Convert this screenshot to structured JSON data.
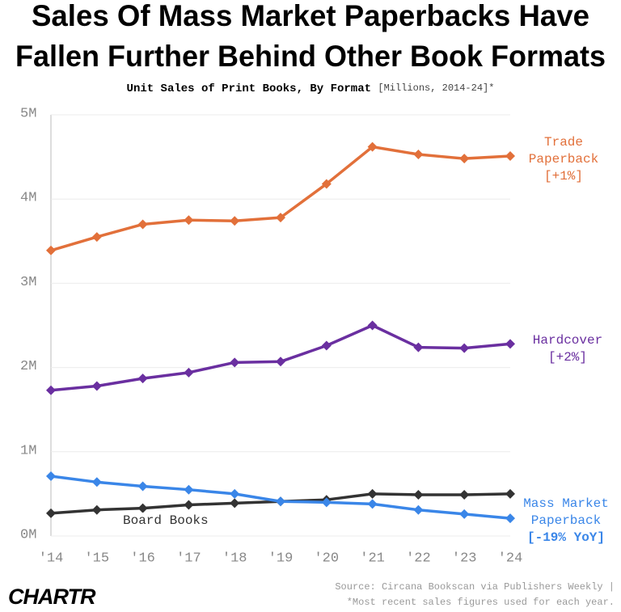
{
  "chart_data": {
    "type": "line",
    "title": [
      "Sales Of Mass Market Paperbacks Have",
      "Fallen Further Behind Other Book Formats"
    ],
    "subtitle": "Unit Sales of Print Books, By Format",
    "subtitle_note": "[Millions, 2014-24]*",
    "categories": [
      "'14",
      "'15",
      "'16",
      "'17",
      "'18",
      "'19",
      "'20",
      "'21",
      "'22",
      "'23",
      "'24"
    ],
    "series": [
      {
        "name": "Trade Paperback",
        "change": "[+1%]",
        "color": "#e2703a",
        "values": [
          3.39,
          3.55,
          3.7,
          3.75,
          3.74,
          3.78,
          4.18,
          4.62,
          4.53,
          4.48,
          4.51
        ]
      },
      {
        "name": "Hardcover",
        "change": "[+2%]",
        "color": "#6a2fa0",
        "values": [
          1.73,
          1.78,
          1.87,
          1.94,
          2.06,
          2.07,
          2.26,
          2.5,
          2.24,
          2.23,
          2.28
        ]
      },
      {
        "name": "Mass Market Paperback",
        "change": "[-19% YoY]",
        "color": "#3a86e8",
        "values": [
          0.71,
          0.64,
          0.59,
          0.55,
          0.5,
          0.41,
          0.4,
          0.38,
          0.31,
          0.26,
          0.21
        ]
      },
      {
        "name": "Board Books",
        "color": "#333333",
        "values": [
          0.27,
          0.31,
          0.33,
          0.37,
          0.39,
          0.41,
          0.43,
          0.5,
          0.49,
          0.49,
          0.5
        ]
      }
    ],
    "ylim": [
      0,
      5
    ],
    "yticks": [
      {
        "value": 0,
        "label": "0M"
      },
      {
        "value": 1,
        "label": "1M"
      },
      {
        "value": 2,
        "label": "2M"
      },
      {
        "value": 3,
        "label": "3M"
      },
      {
        "value": 4,
        "label": "4M"
      },
      {
        "value": 5,
        "label": "5M"
      }
    ],
    "grid": true,
    "source": [
      "Source: Circana Bookscan via Publishers Weekly |",
      "*Most recent sales figures used for each year."
    ],
    "logo": "CHARTR"
  }
}
